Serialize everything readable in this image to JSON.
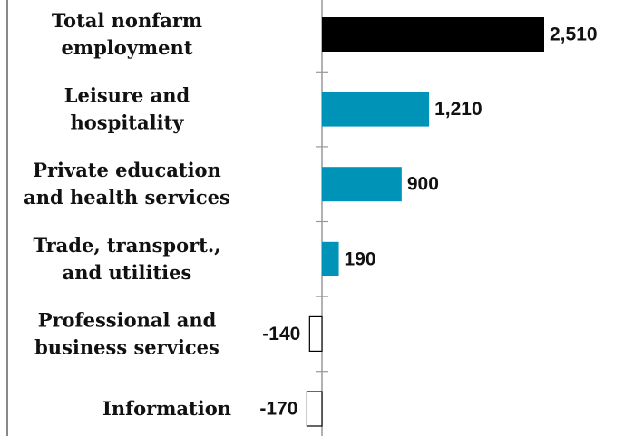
{
  "chart_data": {
    "type": "bar",
    "orientation": "horizontal",
    "categories": [
      "Total nonfarm\nemployment",
      "Leisure and\nhospitality",
      "Private education\nand health services",
      "Trade, transport.,\nand utilities",
      "Professional and\nbusiness services",
      "Information"
    ],
    "values": [
      2510,
      1210,
      900,
      190,
      -140,
      -170
    ],
    "value_labels": [
      "2,510",
      "1,210",
      "900",
      "190",
      "-140",
      "-170"
    ],
    "colors": [
      "#000000",
      "#0093b8",
      "#0093b8",
      "#0093b8",
      "#ffffff",
      "#ffffff"
    ]
  }
}
